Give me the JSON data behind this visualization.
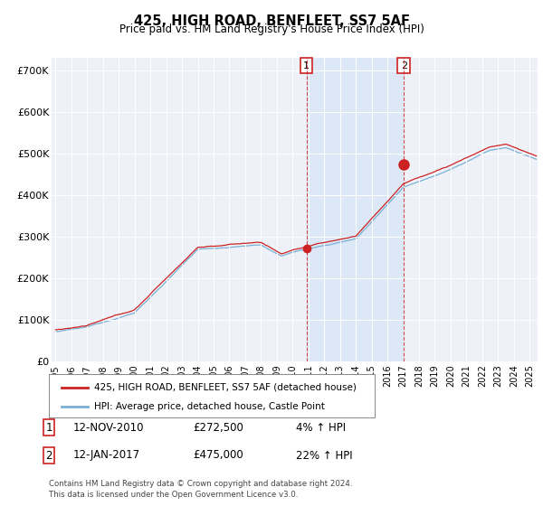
{
  "title": "425, HIGH ROAD, BENFLEET, SS7 5AF",
  "subtitle": "Price paid vs. HM Land Registry's House Price Index (HPI)",
  "ylabel_ticks": [
    "£0",
    "£100K",
    "£200K",
    "£300K",
    "£400K",
    "£500K",
    "£600K",
    "£700K"
  ],
  "ytick_vals": [
    0,
    100000,
    200000,
    300000,
    400000,
    500000,
    600000,
    700000
  ],
  "ylim": [
    0,
    730000
  ],
  "xlim_start": 1994.75,
  "xlim_end": 2025.5,
  "hpi_color": "#7ab0d4",
  "price_color": "#cc2222",
  "shade_color": "#dce8f5",
  "point1_x": 2010.87,
  "point1_y": 272500,
  "point2_x": 2017.04,
  "point2_y": 475000,
  "legend_label1": "425, HIGH ROAD, BENFLEET, SS7 5AF (detached house)",
  "legend_label2": "HPI: Average price, detached house, Castle Point",
  "table_row1": [
    "1",
    "12-NOV-2010",
    "£272,500",
    "4% ↑ HPI"
  ],
  "table_row2": [
    "2",
    "12-JAN-2017",
    "£475,000",
    "22% ↑ HPI"
  ],
  "footer": "Contains HM Land Registry data © Crown copyright and database right 2024.\nThis data is licensed under the Open Government Licence v3.0.",
  "background_color": "#ffffff",
  "plot_bg_color": "#eef2f8"
}
